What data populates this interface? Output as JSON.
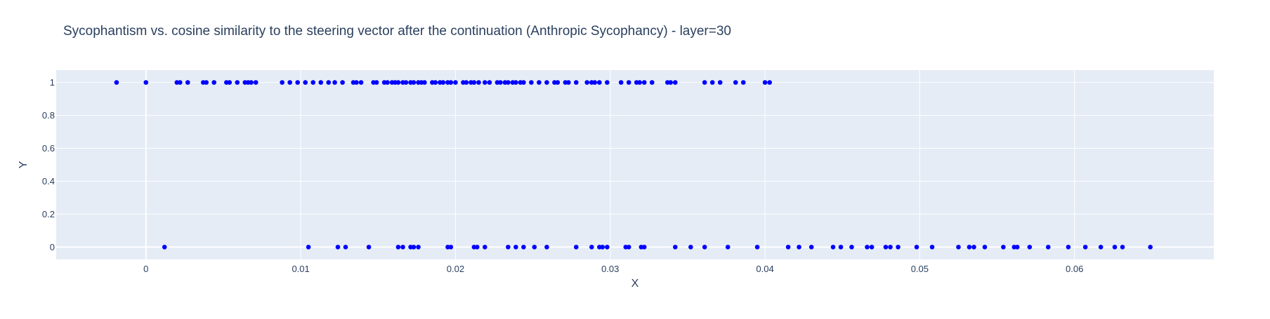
{
  "chart_data": {
    "type": "scatter",
    "title": "Sycophantism vs. cosine similarity to the steering vector after the continuation (Anthropic Sycophancy) - layer=30",
    "xlabel": "X",
    "ylabel": "Y",
    "xlim": [
      -0.0058,
      0.069
    ],
    "ylim": [
      -0.075,
      1.075
    ],
    "grid": true,
    "marker_color": "#0000ff",
    "background_color": "#e5ecf6",
    "x_ticks": [
      0,
      0.01,
      0.02,
      0.03,
      0.04,
      0.05,
      0.06
    ],
    "x_tick_labels": [
      "0",
      "0.01",
      "0.02",
      "0.03",
      "0.04",
      "0.05",
      "0.06"
    ],
    "y_ticks": [
      0,
      0.2,
      0.4,
      0.6,
      0.8,
      1
    ],
    "y_tick_labels": [
      "0",
      "0.2",
      "0.4",
      "0.6",
      "0.8",
      "1"
    ],
    "series": [
      {
        "x": [
          -0.0019,
          0.0,
          0.002,
          0.0022,
          0.0027,
          0.0037,
          0.0039,
          0.0044,
          0.0052,
          0.0054,
          0.0059,
          0.0064,
          0.0066,
          0.0068,
          0.0071,
          0.0088,
          0.0093,
          0.0098,
          0.0103,
          0.0108,
          0.0113,
          0.0118,
          0.0122,
          0.0127,
          0.0134,
          0.0136,
          0.0139,
          0.0147,
          0.0149,
          0.0154,
          0.0156,
          0.0159,
          0.0161,
          0.0163,
          0.0166,
          0.0168,
          0.0171,
          0.0173,
          0.0176,
          0.0178,
          0.018,
          0.0185,
          0.0187,
          0.019,
          0.0192,
          0.0195,
          0.0197,
          0.02,
          0.0205,
          0.0207,
          0.021,
          0.0212,
          0.0215,
          0.0219,
          0.0222,
          0.0227,
          0.0229,
          0.0232,
          0.0234,
          0.0237,
          0.0239,
          0.0242,
          0.0244,
          0.0249,
          0.0254,
          0.0259,
          0.0264,
          0.0266,
          0.0271,
          0.0273,
          0.0278,
          0.0285,
          0.0288,
          0.029,
          0.0293,
          0.0298,
          0.0307,
          0.0312,
          0.0317,
          0.0319,
          0.0322,
          0.0327,
          0.0337,
          0.0339,
          0.0342,
          0.0361,
          0.0366,
          0.0371,
          0.0381,
          0.0386,
          0.04,
          0.0403
        ],
        "y": [
          1,
          1,
          1,
          1,
          1,
          1,
          1,
          1,
          1,
          1,
          1,
          1,
          1,
          1,
          1,
          1,
          1,
          1,
          1,
          1,
          1,
          1,
          1,
          1,
          1,
          1,
          1,
          1,
          1,
          1,
          1,
          1,
          1,
          1,
          1,
          1,
          1,
          1,
          1,
          1,
          1,
          1,
          1,
          1,
          1,
          1,
          1,
          1,
          1,
          1,
          1,
          1,
          1,
          1,
          1,
          1,
          1,
          1,
          1,
          1,
          1,
          1,
          1,
          1,
          1,
          1,
          1,
          1,
          1,
          1,
          1,
          1,
          1,
          1,
          1,
          1,
          1,
          1,
          1,
          1,
          1,
          1,
          1,
          1,
          1,
          1,
          1,
          1,
          1,
          1,
          1,
          1
        ]
      },
      {
        "x": [
          0.0012,
          0.0105,
          0.0124,
          0.0129,
          0.0144,
          0.0163,
          0.0166,
          0.0171,
          0.0173,
          0.0176,
          0.0195,
          0.0197,
          0.0212,
          0.0214,
          0.0219,
          0.0234,
          0.0239,
          0.0244,
          0.0251,
          0.0259,
          0.0278,
          0.0288,
          0.0293,
          0.0295,
          0.0298,
          0.031,
          0.0312,
          0.032,
          0.0322,
          0.0342,
          0.0352,
          0.0361,
          0.0376,
          0.0395,
          0.0415,
          0.0422,
          0.043,
          0.0444,
          0.0449,
          0.0456,
          0.0466,
          0.0469,
          0.0478,
          0.0481,
          0.0486,
          0.0498,
          0.0508,
          0.0525,
          0.0532,
          0.0535,
          0.0542,
          0.0554,
          0.0561,
          0.0563,
          0.0571,
          0.0583,
          0.0596,
          0.0607,
          0.0617,
          0.0626,
          0.0631,
          0.0649
        ],
        "y": [
          0,
          0,
          0,
          0,
          0,
          0,
          0,
          0,
          0,
          0,
          0,
          0,
          0,
          0,
          0,
          0,
          0,
          0,
          0,
          0,
          0,
          0,
          0,
          0,
          0,
          0,
          0,
          0,
          0,
          0,
          0,
          0,
          0,
          0,
          0,
          0,
          0,
          0,
          0,
          0,
          0,
          0,
          0,
          0,
          0,
          0,
          0,
          0,
          0,
          0,
          0,
          0,
          0,
          0,
          0,
          0,
          0,
          0,
          0,
          0,
          0,
          0
        ]
      }
    ]
  }
}
